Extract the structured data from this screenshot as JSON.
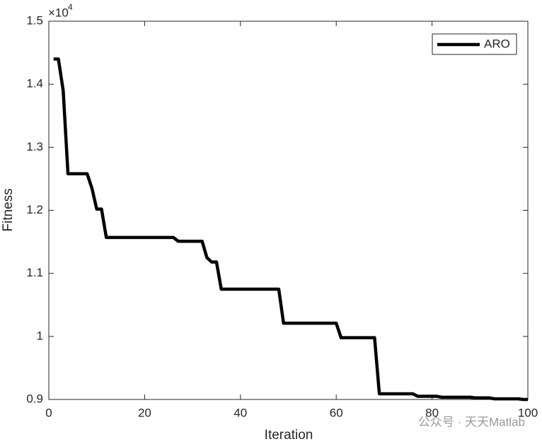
{
  "chart_data": {
    "type": "line",
    "y_exponent_base": "×10",
    "y_exponent": "4",
    "xlabel": "Iteration",
    "ylabel": "Fitness",
    "x": [
      1,
      2,
      3,
      4,
      5,
      6,
      7,
      8,
      9,
      10,
      11,
      12,
      13,
      14,
      15,
      16,
      17,
      18,
      19,
      20,
      21,
      22,
      23,
      24,
      25,
      26,
      27,
      28,
      29,
      30,
      31,
      32,
      33,
      34,
      35,
      36,
      37,
      38,
      39,
      40,
      41,
      42,
      43,
      44,
      45,
      46,
      47,
      48,
      49,
      50,
      51,
      52,
      53,
      54,
      55,
      56,
      57,
      58,
      59,
      60,
      61,
      62,
      63,
      64,
      65,
      66,
      67,
      68,
      69,
      70,
      71,
      72,
      73,
      74,
      75,
      76,
      77,
      78,
      79,
      80,
      81,
      82,
      83,
      84,
      85,
      86,
      87,
      88,
      89,
      90,
      91,
      92,
      93,
      94,
      95,
      96,
      97,
      98,
      99,
      100
    ],
    "series": [
      {
        "name": "ARO",
        "color": "#000000",
        "values": [
          1.44,
          1.44,
          1.39,
          1.258,
          1.258,
          1.258,
          1.258,
          1.258,
          1.235,
          1.202,
          1.202,
          1.157,
          1.157,
          1.157,
          1.157,
          1.157,
          1.157,
          1.157,
          1.157,
          1.157,
          1.157,
          1.157,
          1.157,
          1.157,
          1.157,
          1.157,
          1.151,
          1.151,
          1.151,
          1.151,
          1.151,
          1.151,
          1.125,
          1.118,
          1.118,
          1.075,
          1.075,
          1.075,
          1.075,
          1.075,
          1.075,
          1.075,
          1.075,
          1.075,
          1.075,
          1.075,
          1.075,
          1.075,
          1.021,
          1.021,
          1.021,
          1.021,
          1.021,
          1.021,
          1.021,
          1.021,
          1.021,
          1.021,
          1.021,
          1.021,
          0.998,
          0.998,
          0.998,
          0.998,
          0.998,
          0.998,
          0.998,
          0.998,
          0.909,
          0.909,
          0.909,
          0.909,
          0.909,
          0.909,
          0.909,
          0.909,
          0.905,
          0.905,
          0.905,
          0.905,
          0.905,
          0.9035,
          0.9035,
          0.9035,
          0.9035,
          0.9035,
          0.9035,
          0.9035,
          0.9025,
          0.9025,
          0.9025,
          0.9025,
          0.901,
          0.901,
          0.901,
          0.901,
          0.901,
          0.901,
          0.9,
          0.9
        ]
      }
    ],
    "xlim": [
      0,
      100
    ],
    "xticks": [
      0,
      20,
      40,
      60,
      80,
      100
    ],
    "ylim": [
      0.9,
      1.5
    ],
    "yticks": [
      0.9,
      1,
      1.1,
      1.2,
      1.3,
      1.4,
      1.5
    ],
    "grid": false,
    "legend": "northeast",
    "watermark": "公众号 · 天天Matlab"
  }
}
